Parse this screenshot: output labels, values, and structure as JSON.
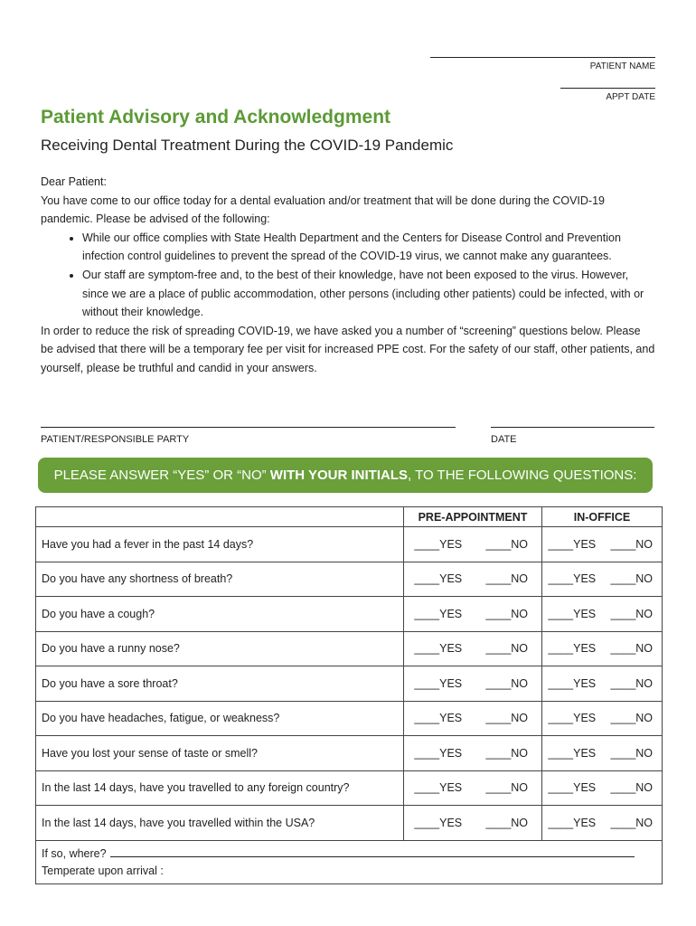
{
  "header": {
    "patient_name_label": "PATIENT NAME",
    "appt_date_label": "APPT DATE"
  },
  "title": "Patient Advisory and Acknowledgment",
  "subtitle": "Receiving Dental Treatment During the COVID-19 Pandemic",
  "body": {
    "greeting": "Dear Patient:",
    "intro": "You have come to our office today for a dental evaluation and/or treatment that will be done during the COVID-19 pandemic. Please be advised of the following:",
    "bullets": [
      "While our office complies with State Health Department and the Centers for Disease Control and Prevention infection control guidelines to prevent the spread of the COVID-19 virus, we cannot make any guarantees.",
      "Our staff are symptom-free and, to the best of their knowledge, have not been exposed to the virus. However, since we are a place of public accommodation, other persons (including other patients) could be infected, with or without their knowledge."
    ],
    "closing": "In order to reduce the risk of spreading COVID-19, we have asked you a number of “screening” questions below. Please be advised that there will be a temporary fee per visit for increased PPE cost. For the safety of our staff, other patients, and yourself, please be truthful and candid in your answers."
  },
  "signature": {
    "party_label": "PATIENT/RESPONSIBLE PARTY",
    "date_label": "DATE"
  },
  "banner": {
    "before": "PLEASE ANSWER “YES” OR “NO” ",
    "bold": "WITH YOUR INITIALS",
    "after": ", TO THE FOLLOWING QUESTIONS:"
  },
  "table": {
    "columns": [
      "PRE-APPOINTMENT",
      "IN-OFFICE"
    ],
    "options": [
      "____YES",
      "____NO"
    ],
    "questions": [
      "Have you had a fever in the past 14 days?",
      "Do you have any shortness of breath?",
      "Do you have a cough?",
      "Do you have a runny nose?",
      "Do you have a sore throat?",
      "Do you have headaches, fatigue, or weakness?",
      "Have you lost your sense of taste or smell?",
      "In the last 14 days, have you travelled to any foreign country?",
      "In the last 14 days, have you travelled within the USA?"
    ],
    "where_label": "If so, where?",
    "temperature_label": "Temperate upon arrival :"
  }
}
